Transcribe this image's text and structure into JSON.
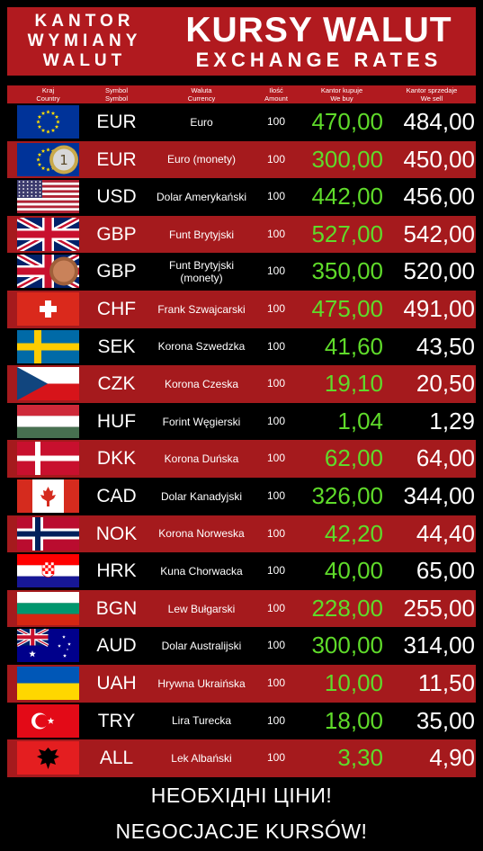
{
  "header": {
    "left_lines": [
      "KANTOR",
      "WYMIANY",
      "WALUT"
    ],
    "title": "KURSY WALUT",
    "subtitle": "EXCHANGE RATES"
  },
  "columns": {
    "country": [
      "Kraj",
      "Country"
    ],
    "symbol": [
      "Symbol",
      "Symbol"
    ],
    "currency": [
      "Waluta",
      "Currency"
    ],
    "quantity": [
      "Ilość",
      "Amount"
    ],
    "buy": [
      "Kantor kupuje",
      "We buy"
    ],
    "sell": [
      "Kantor sprzedaje",
      "We sell"
    ]
  },
  "colors": {
    "header_red": "#b11a1f",
    "row_red": "#a51a1d",
    "buy_green": "#5fdb2a",
    "sell_white": "#ffffff"
  },
  "rows": [
    {
      "flag": "eu-flag-icon",
      "symbol": "EUR",
      "name": "Euro",
      "qty": "100",
      "buy": "470,00",
      "sell": "484,00"
    },
    {
      "flag": "eu-coin-flag-icon",
      "symbol": "EUR",
      "name": "Euro (monety)",
      "qty": "100",
      "buy": "300,00",
      "sell": "450,00"
    },
    {
      "flag": "us-flag-icon",
      "symbol": "USD",
      "name": "Dolar Amerykański",
      "qty": "100",
      "buy": "442,00",
      "sell": "456,00"
    },
    {
      "flag": "uk-flag-icon",
      "symbol": "GBP",
      "name": "Funt Brytyjski",
      "qty": "100",
      "buy": "527,00",
      "sell": "542,00"
    },
    {
      "flag": "uk-coin-flag-icon",
      "symbol": "GBP",
      "name": "Funt Brytyjski (monety)",
      "qty": "100",
      "buy": "350,00",
      "sell": "520,00"
    },
    {
      "flag": "switzerland-flag-icon",
      "symbol": "CHF",
      "name": "Frank Szwajcarski",
      "qty": "100",
      "buy": "475,00",
      "sell": "491,00"
    },
    {
      "flag": "sweden-flag-icon",
      "symbol": "SEK",
      "name": "Korona Szwedzka",
      "qty": "100",
      "buy": "41,60",
      "sell": "43,50"
    },
    {
      "flag": "czech-flag-icon",
      "symbol": "CZK",
      "name": "Korona Czeska",
      "qty": "100",
      "buy": "19,10",
      "sell": "20,50"
    },
    {
      "flag": "hungary-flag-icon",
      "symbol": "HUF",
      "name": "Forint Węgierski",
      "qty": "100",
      "buy": "1,04",
      "sell": "1,29"
    },
    {
      "flag": "denmark-flag-icon",
      "symbol": "DKK",
      "name": "Korona Duńska",
      "qty": "100",
      "buy": "62,00",
      "sell": "64,00"
    },
    {
      "flag": "canada-flag-icon",
      "symbol": "CAD",
      "name": "Dolar Kanadyjski",
      "qty": "100",
      "buy": "326,00",
      "sell": "344,00"
    },
    {
      "flag": "norway-flag-icon",
      "symbol": "NOK",
      "name": "Korona Norweska",
      "qty": "100",
      "buy": "42,20",
      "sell": "44,40"
    },
    {
      "flag": "croatia-flag-icon",
      "symbol": "HRK",
      "name": "Kuna Chorwacka",
      "qty": "100",
      "buy": "40,00",
      "sell": "65,00"
    },
    {
      "flag": "bulgaria-flag-icon",
      "symbol": "BGN",
      "name": "Lew Bułgarski",
      "qty": "100",
      "buy": "228,00",
      "sell": "255,00"
    },
    {
      "flag": "australia-flag-icon",
      "symbol": "AUD",
      "name": "Dolar Australijski",
      "qty": "100",
      "buy": "300,00",
      "sell": "314,00"
    },
    {
      "flag": "ukraine-flag-icon",
      "symbol": "UAH",
      "name": "Hrywna Ukraińska",
      "qty": "100",
      "buy": "10,00",
      "sell": "11,50"
    },
    {
      "flag": "turkey-flag-icon",
      "symbol": "TRY",
      "name": "Lira Turecka",
      "qty": "100",
      "buy": "18,00",
      "sell": "35,00"
    },
    {
      "flag": "albania-flag-icon",
      "symbol": "ALL",
      "name": "Lek Albański",
      "qty": "100",
      "buy": "3,30",
      "sell": "4,90"
    }
  ],
  "footer": {
    "line1": "НЕОБХІДНІ ЦІНИ!",
    "line2": "NEGOCJACJE KURSÓW!"
  }
}
